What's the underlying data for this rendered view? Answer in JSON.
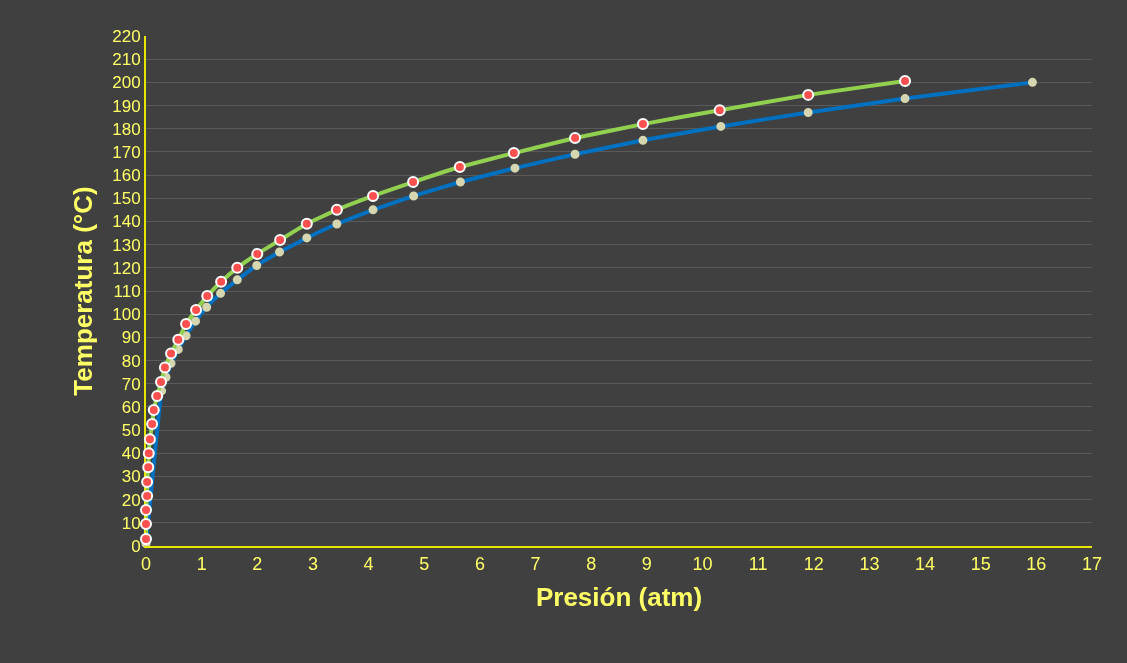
{
  "chart_data": {
    "type": "line",
    "xlabel": "Presión (atm)",
    "ylabel": "Temperatura (°C)",
    "xlim": [
      0,
      17
    ],
    "xticks": [
      0,
      1,
      2,
      3,
      4,
      5,
      6,
      7,
      8,
      9,
      10,
      11,
      12,
      13,
      14,
      15,
      16,
      17
    ],
    "ylim": [
      0,
      220
    ],
    "yticks": [
      0,
      10,
      20,
      30,
      40,
      50,
      60,
      70,
      80,
      90,
      100,
      110,
      120,
      130,
      140,
      150,
      160,
      170,
      180,
      190,
      200,
      210,
      220
    ],
    "grid": "y",
    "marker": "circle",
    "line_style": "solid",
    "series": [
      {
        "color": "#92d050",
        "x": [
          0,
          0,
          0,
          0.02,
          0.02,
          0.04,
          0.05,
          0.07,
          0.11,
          0.14,
          0.2,
          0.27,
          0.34,
          0.45,
          0.58,
          0.72,
          0.9,
          1.1,
          1.35,
          1.64,
          2.0,
          2.41,
          2.89,
          3.43,
          4.08,
          4.8,
          5.64,
          6.61,
          7.71,
          8.93,
          10.31,
          11.9,
          13.64
        ],
        "values": [
          3,
          9.5,
          15.5,
          21.6,
          27.6,
          34,
          40,
          46,
          52.6,
          58.7,
          64.7,
          70.7,
          77,
          83,
          89,
          95.8,
          101.8,
          107.8,
          114,
          120,
          126,
          132,
          139,
          145,
          151,
          157,
          163.5,
          169.5,
          176,
          182,
          188,
          194.6,
          200.6
        ]
      },
      {
        "color": "#0070c0",
        "x": [
          0,
          0.28,
          0.36,
          0.45,
          0.58,
          0.72,
          0.89,
          1.09,
          1.34,
          1.64,
          1.99,
          2.4,
          2.89,
          3.43,
          4.08,
          4.81,
          5.65,
          6.63,
          7.71,
          8.93,
          10.33,
          11.9,
          13.64,
          15.93
        ],
        "values": [
          1,
          66.9,
          72.8,
          78.8,
          84.8,
          90.7,
          97,
          103,
          109,
          114.8,
          121,
          126.8,
          132.9,
          138.9,
          145,
          151,
          157,
          163,
          169,
          175,
          181,
          187,
          193,
          200
        ]
      }
    ]
  }
}
